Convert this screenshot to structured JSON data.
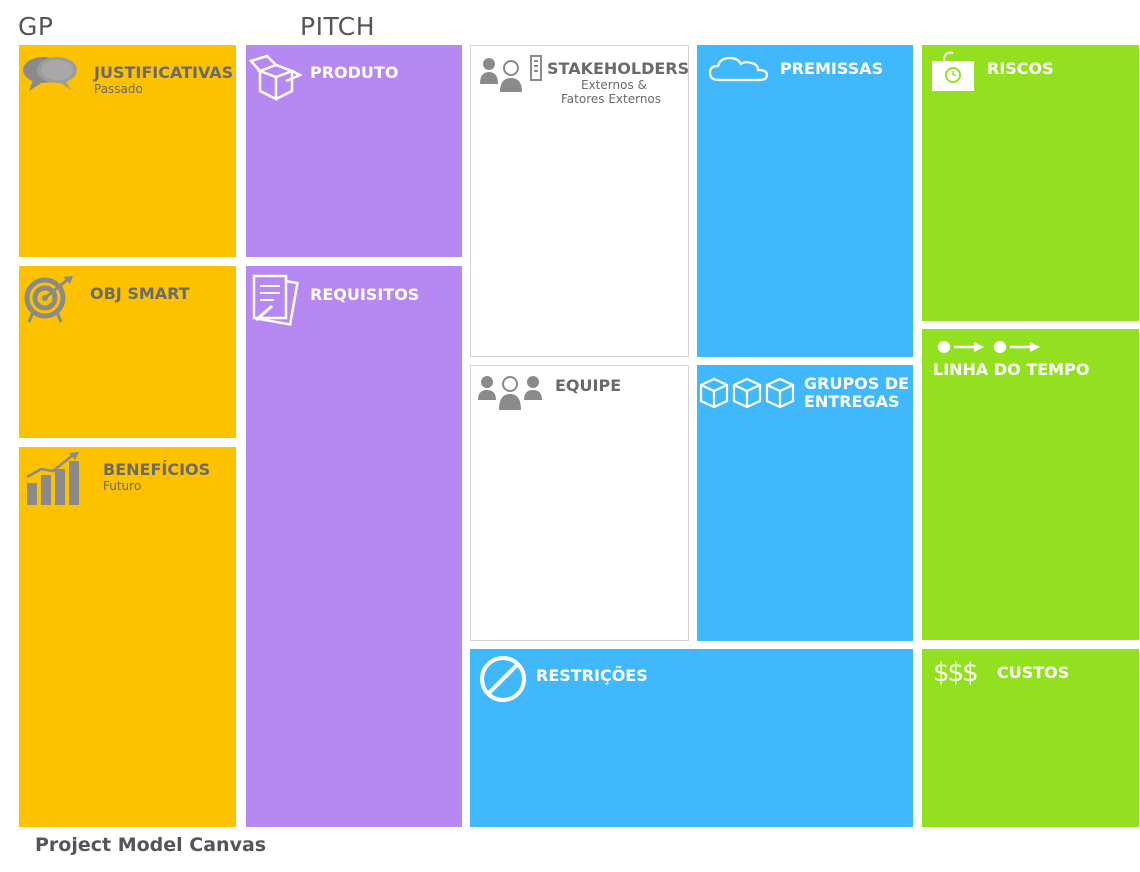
{
  "headers": {
    "gp": "GP",
    "pitch": "PITCH"
  },
  "blocks": {
    "justificativas": {
      "title": "JUSTIFICATIVAS",
      "subtitle": "Passado",
      "icon": "speech-bubbles-icon"
    },
    "obj_smart": {
      "title": "OBJ SMART",
      "icon": "target-icon"
    },
    "beneficios": {
      "title": "BENEFÍCIOS",
      "subtitle": "Futuro",
      "icon": "bar-chart-icon"
    },
    "produto": {
      "title": "PRODUTO",
      "icon": "box-icon"
    },
    "requisitos": {
      "title": "REQUISITOS",
      "icon": "document-icon"
    },
    "stakeholders": {
      "title": "STAKEHOLDERS",
      "subtitle_line1": "Externos &",
      "subtitle_line2": "Fatores Externos",
      "icon": "people-building-icon"
    },
    "equipe": {
      "title": "EQUIPE",
      "icon": "team-icon"
    },
    "premissas": {
      "title": "PREMISSAS",
      "icon": "cloud-icon"
    },
    "grupos_entregas": {
      "title_line1": "GRUPOS DE",
      "title_line2": "ENTREGAS",
      "icon": "packages-icon"
    },
    "restricoes": {
      "title": "RESTRIÇÕES",
      "icon": "prohibited-icon"
    },
    "riscos": {
      "title": "RISCOS",
      "icon": "dynamite-icon"
    },
    "linha_do_tempo": {
      "title": "LINHA DO TEMPO",
      "icon": "timeline-icon"
    },
    "custos": {
      "title": "CUSTOS",
      "icon_text": "$$$",
      "icon": "dollar-icon"
    }
  },
  "colors": {
    "yellow": "#FCC200",
    "purple": "#B688F1",
    "blue": "#41B8FB",
    "green": "#92E020",
    "gray_text": "#6A6A6A"
  },
  "footer": "Project Model Canvas"
}
